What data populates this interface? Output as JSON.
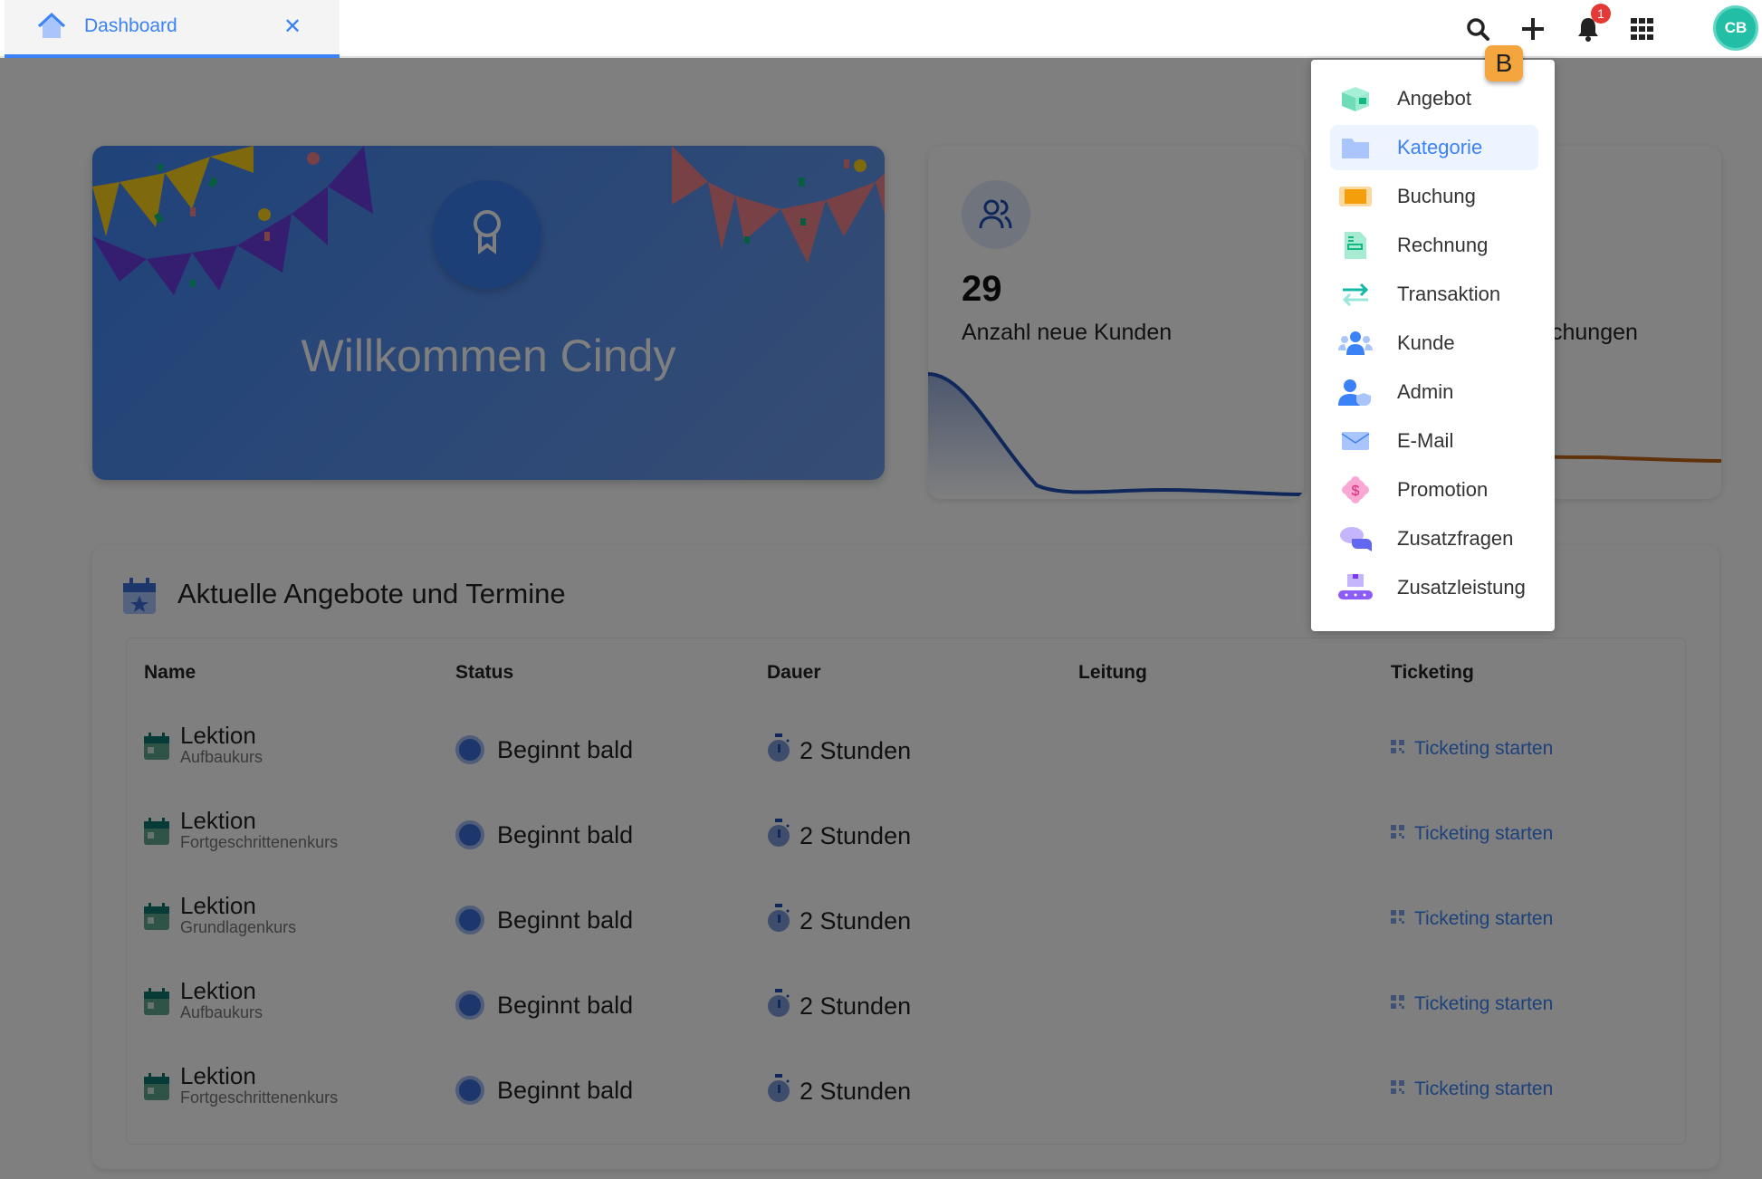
{
  "tab": {
    "label": "Dashboard",
    "icon": "home-icon",
    "close_icon": "close-icon"
  },
  "header": {
    "notification_count": "1",
    "avatar_initials": "CB",
    "icons": [
      "search-icon",
      "plus-icon",
      "bell-icon",
      "apps-grid-icon"
    ]
  },
  "welcome": {
    "title": "Willkommen Cindy"
  },
  "stats": [
    {
      "value": "29",
      "label": "Anzahl neue Kunden",
      "color": "#1e4fb5"
    },
    {
      "label_partial": "chungen",
      "color": "#c0661a"
    }
  ],
  "section": {
    "title": "Aktuelle Angebote und Termine",
    "columns": [
      "Name",
      "Status",
      "Dauer",
      "Leitung",
      "Ticketing"
    ],
    "rows": [
      {
        "name": "Lektion",
        "sub": "Aufbaukurs",
        "status": "Beginnt bald",
        "duration": "2 Stunden",
        "leitung": "",
        "ticket": "Ticketing starten"
      },
      {
        "name": "Lektion",
        "sub": "Fortgeschrittenenkurs",
        "status": "Beginnt bald",
        "duration": "2 Stunden",
        "leitung": "",
        "ticket": "Ticketing starten"
      },
      {
        "name": "Lektion",
        "sub": "Grundlagenkurs",
        "status": "Beginnt bald",
        "duration": "2 Stunden",
        "leitung": "",
        "ticket": "Ticketing starten"
      },
      {
        "name": "Lektion",
        "sub": "Aufbaukurs",
        "status": "Beginnt bald",
        "duration": "2 Stunden",
        "leitung": "",
        "ticket": "Ticketing starten"
      },
      {
        "name": "Lektion",
        "sub": "Fortgeschrittenenkurs",
        "status": "Beginnt bald",
        "duration": "2 Stunden",
        "leitung": "",
        "ticket": "Ticketing starten"
      }
    ]
  },
  "create_menu": {
    "key_hint": "B",
    "active_index": 1,
    "items": [
      {
        "label": "Angebot",
        "icon": "box-icon"
      },
      {
        "label": "Kategorie",
        "icon": "folder-icon"
      },
      {
        "label": "Buchung",
        "icon": "ticket-icon"
      },
      {
        "label": "Rechnung",
        "icon": "invoice-icon"
      },
      {
        "label": "Transaktion",
        "icon": "transfer-icon"
      },
      {
        "label": "Kunde",
        "icon": "users-icon"
      },
      {
        "label": "Admin",
        "icon": "admin-icon"
      },
      {
        "label": "E-Mail",
        "icon": "mail-icon"
      },
      {
        "label": "Promotion",
        "icon": "promotion-icon"
      },
      {
        "label": "Zusatzfragen",
        "icon": "chat-icon"
      },
      {
        "label": "Zusatzleistung",
        "icon": "conveyor-icon"
      }
    ]
  }
}
